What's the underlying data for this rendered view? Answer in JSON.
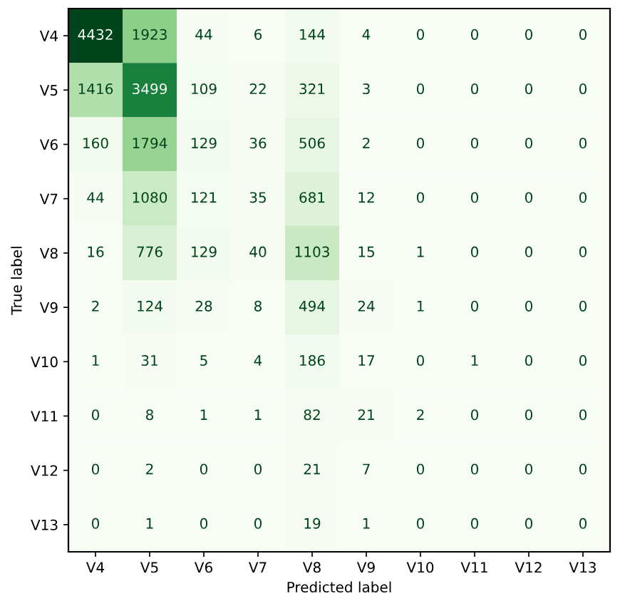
{
  "chart_data": {
    "type": "heatmap",
    "xlabel": "Predicted label",
    "ylabel": "True label",
    "categories": [
      "V4",
      "V5",
      "V6",
      "V7",
      "V8",
      "V9",
      "V10",
      "V11",
      "V12",
      "V13"
    ],
    "y_categories": [
      "V4",
      "V5",
      "V6",
      "V7",
      "V8",
      "V9",
      "V10",
      "V11",
      "V12",
      "V13"
    ],
    "cells": [
      [
        4432,
        1923,
        44,
        6,
        144,
        4,
        0,
        0,
        0,
        0
      ],
      [
        1416,
        3499,
        109,
        22,
        321,
        3,
        0,
        0,
        0,
        0
      ],
      [
        160,
        1794,
        129,
        36,
        506,
        2,
        0,
        0,
        0,
        0
      ],
      [
        44,
        1080,
        121,
        35,
        681,
        12,
        0,
        0,
        0,
        0
      ],
      [
        16,
        776,
        129,
        40,
        1103,
        15,
        1,
        0,
        0,
        0
      ],
      [
        2,
        124,
        28,
        8,
        494,
        24,
        1,
        0,
        0,
        0
      ],
      [
        1,
        31,
        5,
        4,
        186,
        17,
        0,
        1,
        0,
        0
      ],
      [
        0,
        8,
        1,
        1,
        82,
        21,
        2,
        0,
        0,
        0
      ],
      [
        0,
        2,
        0,
        0,
        21,
        7,
        0,
        0,
        0,
        0
      ],
      [
        0,
        1,
        0,
        0,
        19,
        1,
        0,
        0,
        0,
        0
      ]
    ],
    "data_labels": true,
    "grid": false
  }
}
